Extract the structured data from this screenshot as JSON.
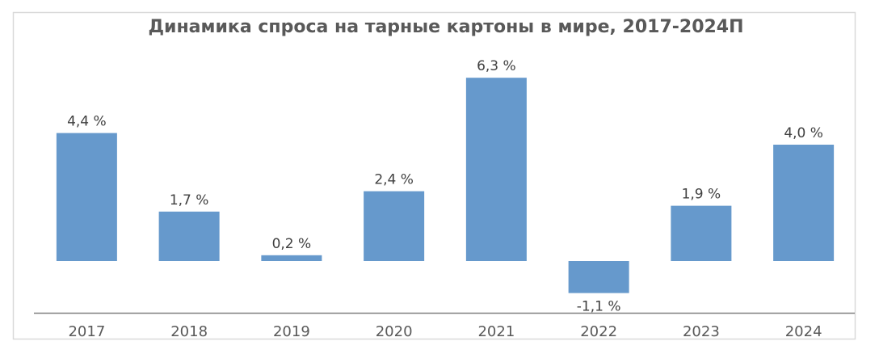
{
  "chart_data": {
    "type": "bar",
    "title": "Динамика спроса на тарные картоны в мире, 2017-2024П",
    "categories": [
      "2017",
      "2018",
      "2019",
      "2020",
      "2021",
      "2022",
      "2023",
      "2024"
    ],
    "values": [
      4.4,
      1.7,
      0.2,
      2.4,
      6.3,
      -1.1,
      1.9,
      4.0
    ],
    "data_labels": [
      "4,4 %",
      "1,7 %",
      "0,2 %",
      "2,4 %",
      "6,3 %",
      "-1,1 %",
      "1,9 %",
      "4,0 %"
    ],
    "unit": "%",
    "xlabel": "",
    "ylabel": "",
    "grid": false,
    "legend": "none",
    "colors": {
      "bar": "#6699CC",
      "axis": "#808080",
      "border": "#D9D9D9",
      "title": "#595959"
    }
  }
}
